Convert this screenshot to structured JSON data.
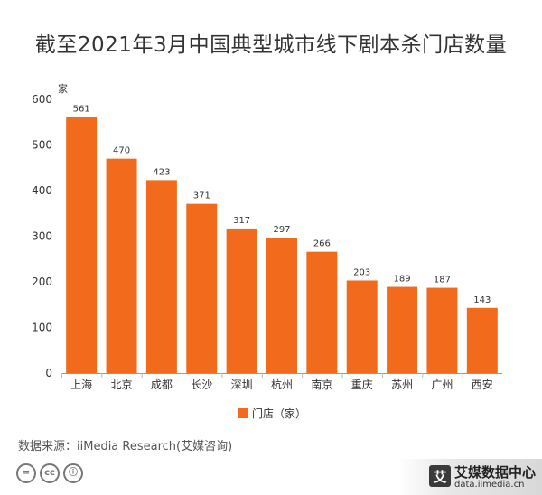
{
  "title": "截至2021年3月中国典型城市线下剧本杀门店数量",
  "source": "数据来源：iiMedia Research(艾媒咨询)",
  "watermark": {
    "logo_glyph": "艾",
    "name": "艾媒数据中心",
    "url": "data.iimedia.cn"
  },
  "license_icons": [
    "=",
    "cc",
    "ⓘ"
  ],
  "colors": {
    "bar": "#F26B1D",
    "axis_text": "#333333",
    "grid": "#e5e5e5"
  },
  "chart_data": {
    "type": "bar",
    "title": "截至2021年3月中国典型城市线下剧本杀门店数量",
    "unit_label": "家",
    "categories": [
      "上海",
      "北京",
      "成都",
      "长沙",
      "深圳",
      "杭州",
      "南京",
      "重庆",
      "苏州",
      "广州",
      "西安"
    ],
    "series": [
      {
        "name": "门店（家）",
        "values": [
          561,
          470,
          423,
          371,
          317,
          297,
          266,
          203,
          189,
          187,
          143
        ]
      }
    ],
    "ylim": [
      0,
      600
    ],
    "yticks": [
      0,
      100,
      200,
      300,
      400,
      500,
      600
    ],
    "legend": "bottom-center",
    "grid": false
  }
}
